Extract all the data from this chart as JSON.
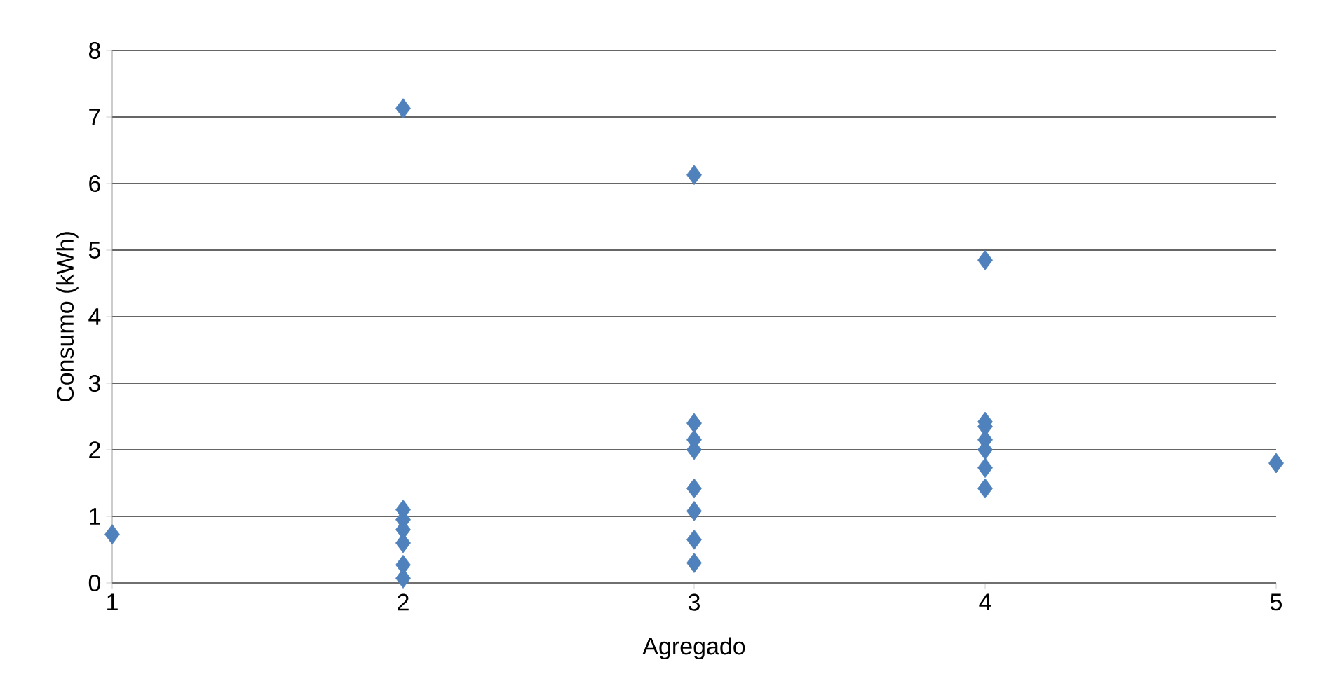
{
  "chart_data": {
    "type": "scatter",
    "xlabel": "Agregado",
    "ylabel": "Consumo (kWh)",
    "x": [
      1,
      2,
      2,
      2,
      2,
      2,
      2,
      2,
      3,
      3,
      3,
      3,
      3,
      3,
      3,
      3,
      4,
      4,
      4,
      4,
      4,
      4,
      4,
      5
    ],
    "values": [
      0.73,
      7.13,
      1.1,
      0.95,
      0.8,
      0.6,
      0.27,
      0.07,
      6.13,
      2.4,
      2.15,
      2.0,
      1.42,
      1.08,
      0.65,
      0.3,
      4.85,
      2.42,
      2.35,
      2.15,
      2.0,
      1.73,
      1.42,
      1.8
    ],
    "color": "#4f81bd",
    "marker": "diamond",
    "grid": "y",
    "xlim": [
      1,
      5
    ],
    "ylim": [
      0,
      8
    ],
    "xticks": [
      1,
      2,
      3,
      4,
      5
    ],
    "yticks": [
      0,
      1,
      2,
      3,
      4,
      5,
      6,
      7,
      8
    ]
  }
}
